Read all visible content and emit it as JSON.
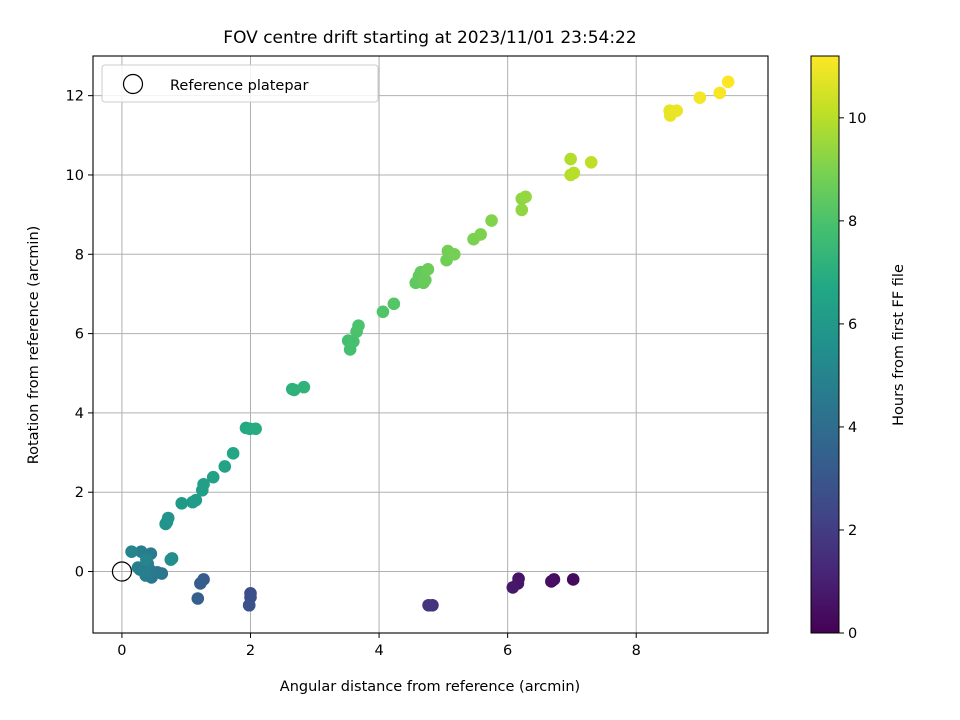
{
  "chart_data": {
    "type": "scatter",
    "title": "FOV centre drift starting at 2023/11/01 23:54:22",
    "xlabel": "Angular distance from reference (arcmin)",
    "ylabel": "Rotation from reference (arcmin)",
    "xlim": [
      -0.45,
      10.05
    ],
    "ylim": [
      -1.55,
      13.0
    ],
    "xticks": [
      0,
      2,
      4,
      6,
      8
    ],
    "yticks": [
      0,
      2,
      4,
      6,
      8,
      10,
      12
    ],
    "grid": true,
    "legend": {
      "position": "top-left",
      "entries": [
        "Reference platepar"
      ]
    },
    "reference_point": {
      "x": 0,
      "y": 0
    },
    "colorbar": {
      "label": "Hours from first FF file",
      "colormap": "viridis",
      "range": [
        0,
        11.2
      ],
      "ticks": [
        0,
        2,
        4,
        6,
        8,
        10
      ]
    },
    "series": [
      {
        "x": [
          7.02,
          6.72,
          6.68,
          6.17,
          6.16,
          6.08,
          4.83,
          4.77,
          2.0,
          2.0,
          1.98,
          1.98,
          1.27,
          1.22,
          1.18,
          0.62,
          0.55,
          0.46,
          0.43,
          0.4,
          0.37,
          0.35,
          0.33,
          0.3,
          0.28,
          0.25,
          0.15,
          0.45,
          0.3,
          0.38,
          0.78,
          0.76,
          0.7,
          0.68,
          0.72,
          0.93,
          1.1,
          1.15,
          1.25,
          1.27,
          1.42,
          1.6,
          1.73,
          1.93,
          1.99,
          2.08,
          2.65,
          2.68,
          2.83,
          3.52,
          3.55,
          3.6,
          3.65,
          3.68,
          4.06,
          4.23,
          4.57,
          4.62,
          4.65,
          4.69,
          4.72,
          4.76,
          5.05,
          5.07,
          5.17,
          5.47,
          5.58,
          5.75,
          6.22,
          6.22,
          6.28,
          6.98,
          6.98,
          7.03,
          7.3,
          8.52,
          8.53,
          8.63,
          8.99,
          9.3,
          9.43
        ],
        "y": [
          -0.2,
          -0.2,
          -0.25,
          -0.18,
          -0.3,
          -0.4,
          -0.85,
          -0.85,
          -0.55,
          -0.65,
          -0.85,
          -0.85,
          -0.2,
          -0.3,
          -0.68,
          -0.05,
          -0.02,
          -0.15,
          0.05,
          0.2,
          -0.1,
          0.0,
          0.1,
          0.5,
          0.05,
          0.1,
          0.5,
          0.45,
          0.08,
          0.3,
          0.33,
          0.3,
          1.25,
          1.2,
          1.35,
          1.72,
          1.75,
          1.8,
          2.05,
          2.2,
          2.38,
          2.65,
          2.98,
          3.62,
          3.6,
          3.6,
          4.6,
          4.58,
          4.65,
          5.82,
          5.6,
          5.8,
          6.05,
          6.2,
          6.55,
          6.75,
          7.28,
          7.45,
          7.55,
          7.28,
          7.35,
          7.62,
          7.85,
          8.08,
          8.0,
          8.38,
          8.5,
          8.85,
          9.4,
          9.12,
          9.45,
          10.4,
          10.0,
          10.05,
          10.32,
          11.62,
          11.5,
          11.62,
          11.95,
          12.07,
          12.35
        ],
        "hours": [
          0.3,
          0.4,
          0.45,
          0.6,
          0.65,
          0.7,
          1.6,
          1.7,
          2.6,
          2.7,
          2.8,
          2.9,
          3.2,
          3.3,
          3.4,
          4.4,
          4.45,
          4.5,
          4.55,
          4.6,
          4.65,
          4.7,
          4.75,
          4.8,
          4.85,
          4.9,
          5.0,
          4.6,
          4.8,
          5.0,
          5.4,
          5.5,
          5.6,
          5.7,
          5.75,
          6.0,
          6.1,
          6.15,
          6.2,
          6.3,
          6.4,
          6.5,
          6.6,
          6.7,
          6.8,
          6.85,
          7.1,
          7.15,
          7.2,
          7.8,
          7.85,
          7.9,
          7.95,
          8.0,
          8.1,
          8.2,
          8.4,
          8.45,
          8.5,
          8.55,
          8.6,
          8.65,
          8.75,
          8.8,
          8.85,
          8.95,
          9.0,
          9.1,
          9.3,
          9.35,
          9.4,
          9.9,
          9.95,
          10.0,
          10.1,
          10.8,
          10.85,
          10.9,
          11.0,
          11.1,
          11.2
        ]
      }
    ]
  }
}
